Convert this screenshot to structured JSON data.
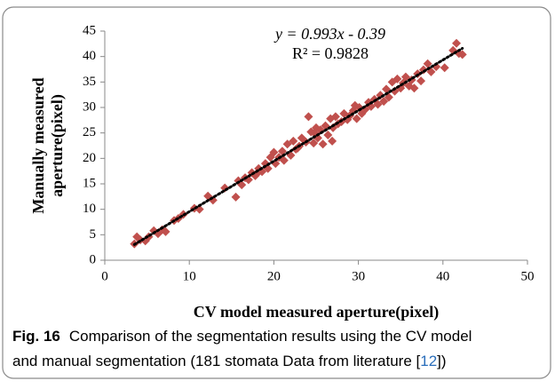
{
  "chart_data": {
    "type": "scatter",
    "equation": "y = 0.993x - 0.39",
    "r_squared": "R² = 0.9828",
    "trendline": {
      "slope": 0.993,
      "intercept": -0.39
    },
    "xlabel": "CV model measured aperture(pixel)",
    "ylabel": [
      "Manually measured",
      "aperture(pixel)"
    ],
    "xlim": [
      0,
      50
    ],
    "xticks": [
      0,
      10,
      20,
      30,
      40,
      50
    ],
    "ylim": [
      0,
      45
    ],
    "yticks": [
      0,
      5,
      10,
      15,
      20,
      25,
      30,
      35,
      40,
      45
    ],
    "series": [
      {
        "color": "#c0504d",
        "x": [
          3.5,
          3.8,
          4.2,
          4.8,
          5.2,
          5.8,
          6.3,
          6.8,
          7.2,
          8.2,
          8.7,
          9.3,
          10.6,
          11.2,
          12.2,
          12.8,
          14.2,
          15.5,
          15.8,
          16.2,
          16.6,
          17.0,
          17.4,
          17.8,
          18.2,
          18.6,
          19.0,
          19.3,
          19.6,
          20.0,
          20.2,
          20.6,
          21.0,
          21.2,
          21.6,
          22.0,
          22.3,
          22.6,
          23.0,
          23.3,
          23.8,
          24.1,
          24.4,
          24.7,
          25.0,
          25.2,
          25.5,
          25.8,
          26.1,
          26.4,
          26.7,
          27.0,
          27.3,
          27.6,
          28.0,
          28.3,
          28.7,
          29.0,
          29.4,
          29.8,
          30.1,
          30.4,
          30.8,
          31.2,
          31.5,
          31.9,
          32.3,
          32.6,
          33.0,
          33.3,
          33.6,
          34.0,
          34.3,
          34.6,
          35.0,
          35.3,
          35.6,
          36.0,
          36.3,
          36.6,
          37.0,
          37.4,
          37.7,
          38.2,
          38.6,
          39.2,
          40.2,
          41.2,
          41.6,
          41.9,
          42.3,
          26.9,
          29.6,
          24.8,
          18.0,
          22.8
        ],
        "values": [
          3.2,
          4.6,
          4.0,
          3.8,
          4.6,
          5.8,
          5.2,
          6.0,
          5.6,
          7.8,
          8.2,
          9.0,
          10.2,
          10.0,
          12.6,
          11.8,
          14.2,
          12.4,
          15.6,
          14.8,
          16.2,
          15.8,
          17.2,
          16.6,
          18.0,
          17.4,
          19.0,
          18.0,
          20.2,
          21.2,
          19.0,
          20.2,
          21.4,
          19.6,
          22.8,
          20.6,
          23.4,
          21.8,
          22.4,
          24.0,
          23.2,
          28.2,
          25.2,
          23.0,
          26.0,
          24.0,
          25.6,
          22.8,
          26.4,
          24.6,
          27.8,
          26.0,
          28.2,
          26.8,
          27.2,
          28.8,
          27.6,
          28.4,
          29.4,
          27.8,
          30.0,
          28.8,
          29.6,
          31.0,
          30.2,
          31.6,
          30.6,
          32.4,
          31.2,
          33.6,
          32.0,
          35.0,
          33.2,
          35.6,
          33.8,
          34.8,
          36.0,
          34.2,
          35.4,
          33.8,
          36.6,
          35.2,
          37.4,
          38.6,
          37.0,
          38.0,
          37.8,
          41.2,
          42.6,
          40.6,
          40.4,
          23.4,
          30.4,
          25.0,
          17.0,
          22.0
        ]
      }
    ]
  },
  "caption": {
    "label": "Fig. 16",
    "text": "Comparison of the segmentation results using the CV model",
    "text2": "and manual segmentation (181 stomata Data from literature [",
    "ref": "12",
    "end": "])"
  }
}
